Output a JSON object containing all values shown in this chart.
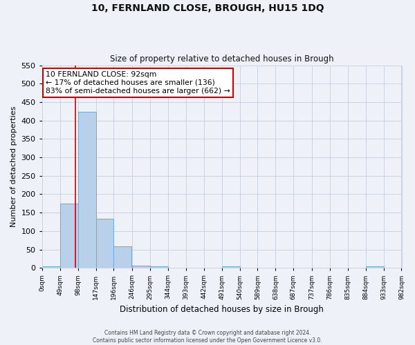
{
  "title": "10, FERNLAND CLOSE, BROUGH, HU15 1DQ",
  "subtitle": "Size of property relative to detached houses in Brough",
  "xlabel": "Distribution of detached houses by size in Brough",
  "ylabel": "Number of detached properties",
  "bar_color": "#b8d0ea",
  "bar_edge_color": "#6aaad4",
  "grid_color": "#c8d4e0",
  "background_color": "#eef2f8",
  "bin_edges": [
    0,
    49,
    98,
    147,
    196,
    246,
    295,
    344,
    393,
    442,
    491,
    540,
    589,
    638,
    687,
    737,
    786,
    835,
    884,
    933,
    982
  ],
  "bin_labels": [
    "0sqm",
    "49sqm",
    "98sqm",
    "147sqm",
    "196sqm",
    "246sqm",
    "295sqm",
    "344sqm",
    "393sqm",
    "442sqm",
    "491sqm",
    "540sqm",
    "589sqm",
    "638sqm",
    "687sqm",
    "737sqm",
    "786sqm",
    "835sqm",
    "884sqm",
    "933sqm",
    "982sqm"
  ],
  "bar_heights": [
    5,
    174,
    424,
    134,
    58,
    7,
    4,
    0,
    0,
    0,
    5,
    0,
    0,
    0,
    0,
    0,
    0,
    0,
    4,
    0,
    0
  ],
  "ylim": [
    0,
    550
  ],
  "yticks": [
    0,
    50,
    100,
    150,
    200,
    250,
    300,
    350,
    400,
    450,
    500,
    550
  ],
  "red_line_x": 92,
  "annotation_title": "10 FERNLAND CLOSE: 92sqm",
  "annotation_line1": "← 17% of detached houses are smaller (136)",
  "annotation_line2": "83% of semi-detached houses are larger (662) →",
  "annotation_box_color": "#ffffff",
  "annotation_box_edge_color": "#cc0000",
  "footer_line1": "Contains HM Land Registry data © Crown copyright and database right 2024.",
  "footer_line2": "Contains public sector information licensed under the Open Government Licence v3.0."
}
